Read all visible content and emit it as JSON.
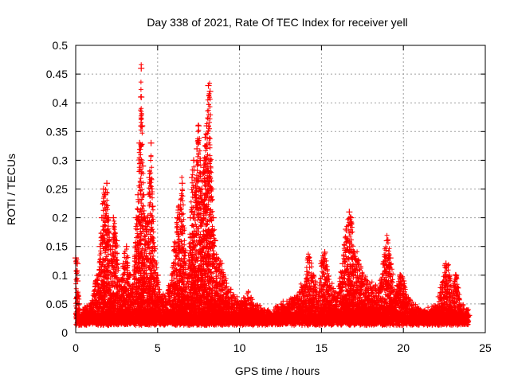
{
  "chart_data": {
    "type": "scatter",
    "title": "Day 338 of 2021, Rate Of TEC Index for receiver yell",
    "xlabel": "GPS time / hours",
    "ylabel": "ROTI / TECUs",
    "xlim": [
      0,
      25
    ],
    "ylim": [
      0,
      0.5
    ],
    "x_ticks": [
      0,
      5,
      10,
      15,
      20,
      25
    ],
    "x_tick_labels": [
      "0",
      "5",
      "10",
      "15",
      "20",
      "25"
    ],
    "y_ticks": [
      0,
      0.05,
      0.1,
      0.15,
      0.2,
      0.25,
      0.3,
      0.35,
      0.4,
      0.45,
      0.5
    ],
    "y_tick_labels": [
      "0",
      "0.05",
      "0.1",
      "0.15",
      "0.2",
      "0.25",
      "0.3",
      "0.35",
      "0.4",
      "0.45",
      "0.5"
    ],
    "grid": true,
    "marker": "plus",
    "color": "#ff0000",
    "series": [
      {
        "name": "ROTI",
        "x": [
          0.0,
          0.1,
          0.1,
          0.1,
          0.2,
          0.3,
          0.5,
          0.8,
          1.0,
          1.2,
          1.4,
          1.5,
          1.6,
          1.7,
          1.8,
          1.9,
          2.0,
          2.1,
          2.2,
          2.3,
          2.5,
          2.7,
          2.9,
          3.1,
          3.3,
          3.5,
          3.7,
          3.8,
          3.9,
          4.0,
          4.0,
          4.05,
          4.1,
          4.15,
          4.2,
          4.3,
          4.4,
          4.5,
          4.6,
          4.7,
          4.8,
          5.0,
          5.2,
          5.5,
          5.8,
          6.0,
          6.2,
          6.5,
          6.8,
          7.0,
          7.1,
          7.2,
          7.3,
          7.4,
          7.5,
          7.6,
          7.7,
          7.8,
          7.9,
          8.0,
          8.1,
          8.2,
          8.3,
          8.4,
          8.5,
          8.6,
          8.8,
          9.0,
          9.2,
          9.5,
          9.8,
          10.0,
          10.5,
          11.0,
          11.5,
          12.0,
          12.5,
          13.0,
          13.5,
          14.0,
          14.2,
          14.5,
          14.8,
          15.0,
          15.2,
          15.5,
          16.0,
          16.3,
          16.5,
          16.7,
          16.8,
          17.0,
          17.5,
          18.0,
          18.5,
          18.8,
          19.0,
          19.2,
          19.5,
          19.8,
          20.0,
          20.2,
          20.5,
          21.0,
          21.5,
          22.0,
          22.3,
          22.6,
          22.8,
          23.0,
          23.2,
          23.5,
          23.8,
          24.0
        ],
        "y": [
          0.13,
          0.12,
          0.03,
          0.09,
          0.05,
          0.02,
          0.04,
          0.03,
          0.05,
          0.08,
          0.1,
          0.15,
          0.2,
          0.25,
          0.24,
          0.26,
          0.2,
          0.15,
          0.12,
          0.2,
          0.16,
          0.08,
          0.12,
          0.15,
          0.1,
          0.08,
          0.2,
          0.24,
          0.33,
          0.46,
          0.41,
          0.36,
          0.29,
          0.24,
          0.2,
          0.18,
          0.2,
          0.27,
          0.33,
          0.22,
          0.15,
          0.1,
          0.05,
          0.06,
          0.08,
          0.15,
          0.2,
          0.26,
          0.08,
          0.2,
          0.27,
          0.3,
          0.24,
          0.32,
          0.36,
          0.3,
          0.25,
          0.28,
          0.34,
          0.36,
          0.43,
          0.42,
          0.25,
          0.2,
          0.16,
          0.13,
          0.12,
          0.1,
          0.08,
          0.06,
          0.05,
          0.04,
          0.06,
          0.04,
          0.03,
          0.03,
          0.04,
          0.05,
          0.06,
          0.08,
          0.13,
          0.1,
          0.05,
          0.12,
          0.14,
          0.08,
          0.06,
          0.12,
          0.18,
          0.21,
          0.2,
          0.14,
          0.1,
          0.08,
          0.07,
          0.12,
          0.16,
          0.13,
          0.06,
          0.1,
          0.09,
          0.06,
          0.04,
          0.03,
          0.03,
          0.04,
          0.07,
          0.12,
          0.1,
          0.06,
          0.1,
          0.04,
          0.03,
          0.03
        ]
      }
    ]
  }
}
